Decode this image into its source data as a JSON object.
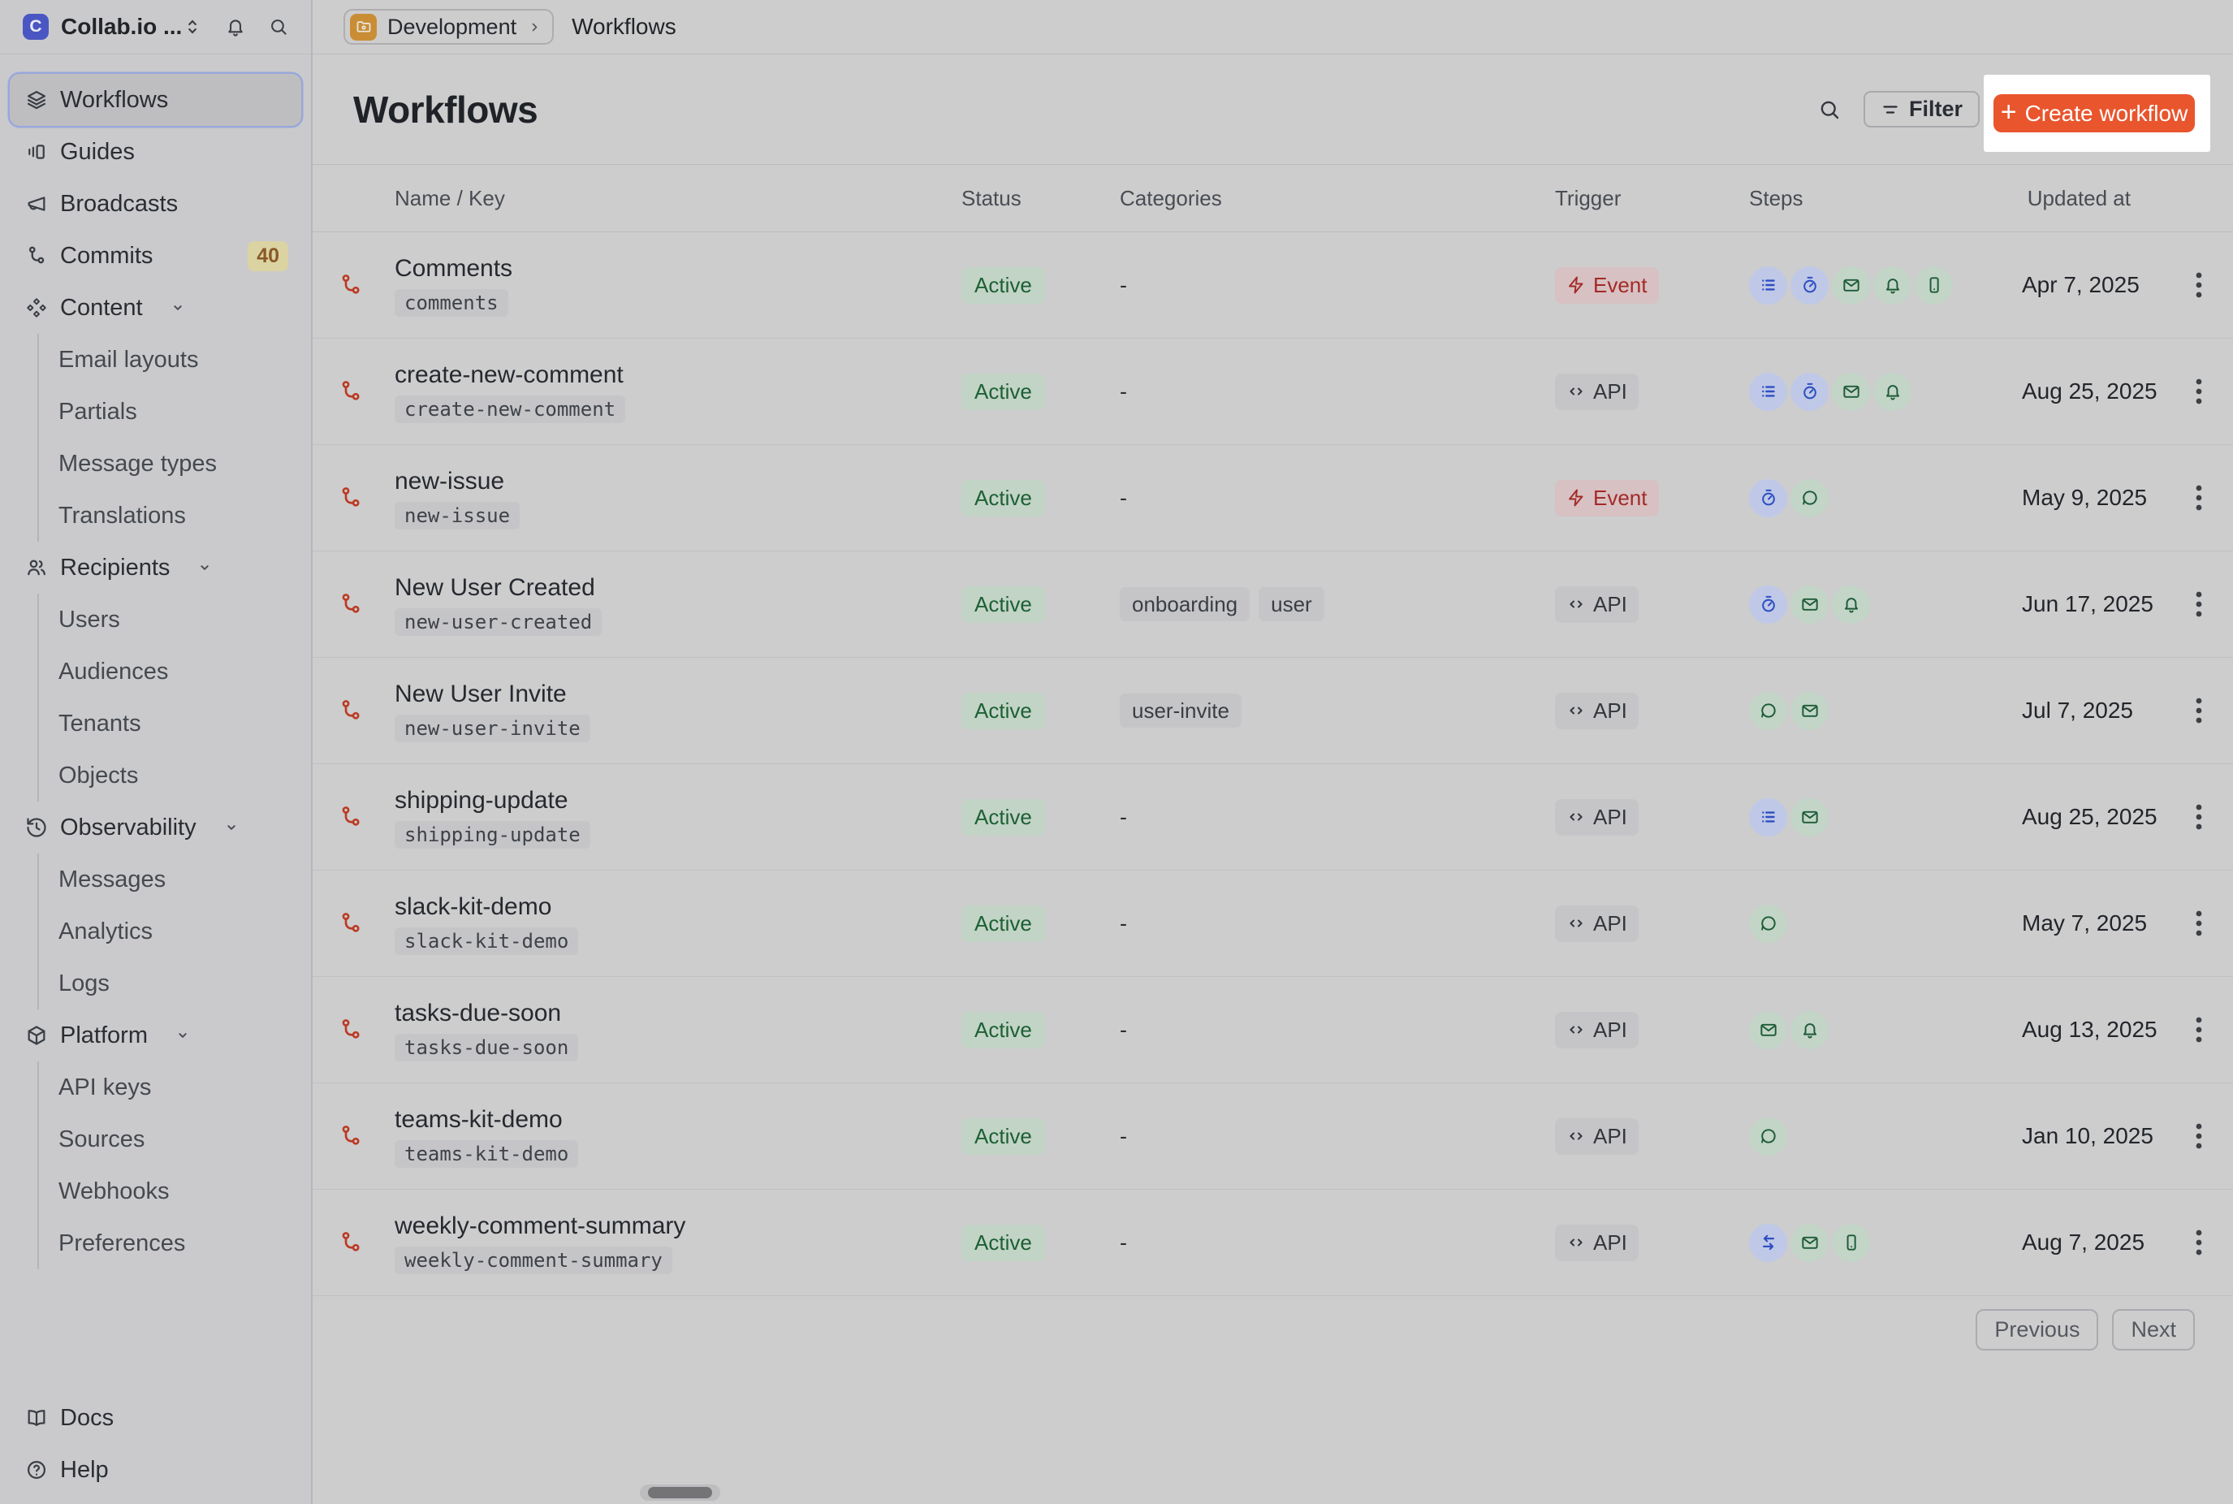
{
  "colors": {
    "brand_orange": "#E9552D",
    "highlight_white": "#FFFFFF",
    "status_active_green": "#1D6034",
    "trigger_event_red": "#A32A28",
    "step_blue": "#2F4FC2",
    "step_green": "#1D5B36",
    "workflow_icon_red": "#BB3A22",
    "logo_blue": "#4A57C2",
    "env_folder_amber": "#C98E35"
  },
  "sidebar": {
    "workspace": {
      "name": "Collab.io ...",
      "logo_letter": "C"
    },
    "items": [
      {
        "label": "Workflows",
        "icon": "layers",
        "selected": true
      },
      {
        "label": "Guides",
        "icon": "guides"
      },
      {
        "label": "Broadcasts",
        "icon": "megaphone"
      },
      {
        "label": "Commits",
        "icon": "git-branch",
        "badge": "40"
      },
      {
        "label": "Content",
        "icon": "content-diamonds",
        "expandable": true,
        "children": [
          "Email layouts",
          "Partials",
          "Message types",
          "Translations"
        ]
      },
      {
        "label": "Recipients",
        "icon": "users",
        "expandable": true,
        "children": [
          "Users",
          "Audiences",
          "Tenants",
          "Objects"
        ]
      },
      {
        "label": "Observability",
        "icon": "history-clock",
        "expandable": true,
        "children": [
          "Messages",
          "Analytics",
          "Logs"
        ]
      },
      {
        "label": "Platform",
        "icon": "package",
        "expandable": true,
        "children": [
          "API keys",
          "Sources",
          "Webhooks",
          "Preferences"
        ]
      }
    ],
    "footer_items": [
      {
        "label": "Docs",
        "icon": "book"
      },
      {
        "label": "Help",
        "icon": "help-circle"
      }
    ]
  },
  "topbar": {
    "environment": "Development",
    "breadcrumb": "Workflows"
  },
  "page": {
    "title": "Workflows",
    "filter_label": "Filter",
    "create_label": "Create workflow"
  },
  "table": {
    "columns": [
      "Name / Key",
      "Status",
      "Categories",
      "Trigger",
      "Steps",
      "Updated at"
    ],
    "empty_categories_placeholder": "-",
    "rows": [
      {
        "name": "Comments",
        "key": "comments",
        "status": "Active",
        "categories": [],
        "trigger": "Event",
        "steps": [
          "batch",
          "delay",
          "email",
          "bell",
          "phone"
        ],
        "updated": "Apr 7, 2025"
      },
      {
        "name": "create-new-comment",
        "key": "create-new-comment",
        "status": "Active",
        "categories": [],
        "trigger": "API",
        "steps": [
          "batch",
          "delay",
          "email",
          "bell"
        ],
        "updated": "Aug 25, 2025"
      },
      {
        "name": "new-issue",
        "key": "new-issue",
        "status": "Active",
        "categories": [],
        "trigger": "Event",
        "steps": [
          "delay",
          "chat"
        ],
        "updated": "May 9, 2025"
      },
      {
        "name": "New User Created",
        "key": "new-user-created",
        "status": "Active",
        "categories": [
          "onboarding",
          "user"
        ],
        "trigger": "API",
        "steps": [
          "delay",
          "email",
          "bell"
        ],
        "updated": "Jun 17, 2025"
      },
      {
        "name": "New User Invite",
        "key": "new-user-invite",
        "status": "Active",
        "categories": [
          "user-invite"
        ],
        "trigger": "API",
        "steps": [
          "chat",
          "email"
        ],
        "updated": "Jul 7, 2025"
      },
      {
        "name": "shipping-update",
        "key": "shipping-update",
        "status": "Active",
        "categories": [],
        "trigger": "API",
        "steps": [
          "batch",
          "email"
        ],
        "updated": "Aug 25, 2025"
      },
      {
        "name": "slack-kit-demo",
        "key": "slack-kit-demo",
        "status": "Active",
        "categories": [],
        "trigger": "API",
        "steps": [
          "chat"
        ],
        "updated": "May 7, 2025"
      },
      {
        "name": "tasks-due-soon",
        "key": "tasks-due-soon",
        "status": "Active",
        "categories": [],
        "trigger": "API",
        "steps": [
          "email",
          "bell"
        ],
        "updated": "Aug 13, 2025"
      },
      {
        "name": "teams-kit-demo",
        "key": "teams-kit-demo",
        "status": "Active",
        "categories": [],
        "trigger": "API",
        "steps": [
          "chat"
        ],
        "updated": "Jan 10, 2025"
      },
      {
        "name": "weekly-comment-summary",
        "key": "weekly-comment-summary",
        "status": "Active",
        "categories": [],
        "trigger": "API",
        "steps": [
          "fetch",
          "email",
          "phone"
        ],
        "updated": "Aug 7, 2025"
      }
    ]
  },
  "pagination": {
    "previous": "Previous",
    "next": "Next"
  }
}
